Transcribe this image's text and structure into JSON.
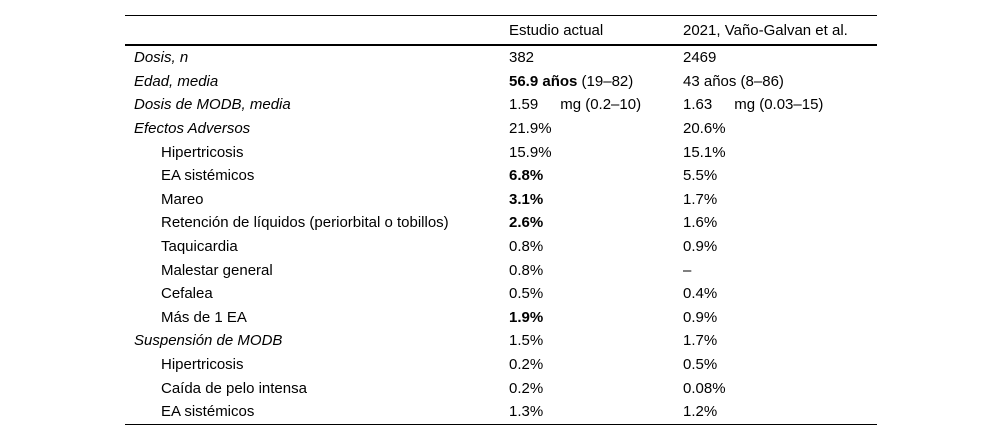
{
  "colors": {
    "text": "#000000",
    "background": "#ffffff",
    "rule": "#000000"
  },
  "table": {
    "columns": [
      "",
      "Estudio actual",
      "2021, Vaño-Galvan et al."
    ],
    "rows": [
      {
        "label": "Dosis, n",
        "level": "section",
        "cells": [
          [
            {
              "t": "382"
            }
          ],
          [
            {
              "t": "2469"
            }
          ]
        ]
      },
      {
        "label": "Edad, media",
        "level": "section",
        "cells": [
          [
            {
              "t": "56.9 años",
              "b": 1
            },
            {
              "t": " (19–82)"
            }
          ],
          [
            {
              "t": "43 años (8–86)"
            }
          ]
        ]
      },
      {
        "label": "Dosis de MODB, media",
        "level": "section",
        "cells": [
          [
            {
              "t": "1.59"
            },
            {
              "t": "mg (0.2–10)",
              "gap": 1
            }
          ],
          [
            {
              "t": "1.63"
            },
            {
              "t": "mg (0.03–15)",
              "gap": 1
            }
          ]
        ]
      },
      {
        "label": "Efectos Adversos",
        "level": "section",
        "cells": [
          [
            {
              "t": "21.9%"
            }
          ],
          [
            {
              "t": "20.6%"
            }
          ]
        ]
      },
      {
        "label": "Hipertricosis",
        "level": "sub",
        "cells": [
          [
            {
              "t": "15.9%"
            }
          ],
          [
            {
              "t": "15.1%"
            }
          ]
        ]
      },
      {
        "label": "EA sistémicos",
        "level": "sub",
        "cells": [
          [
            {
              "t": "6.8%",
              "b": 1
            }
          ],
          [
            {
              "t": "5.5%"
            }
          ]
        ]
      },
      {
        "label": "Mareo",
        "level": "sub",
        "cells": [
          [
            {
              "t": "3.1%",
              "b": 1
            }
          ],
          [
            {
              "t": "1.7%"
            }
          ]
        ]
      },
      {
        "label": "Retención de líquidos (periorbital o tobillos)",
        "level": "sub",
        "cells": [
          [
            {
              "t": "2.6%",
              "b": 1
            }
          ],
          [
            {
              "t": "1.6%"
            }
          ]
        ]
      },
      {
        "label": "Taquicardia",
        "level": "sub",
        "cells": [
          [
            {
              "t": "0.8%"
            }
          ],
          [
            {
              "t": "0.9%"
            }
          ]
        ]
      },
      {
        "label": "Malestar general",
        "level": "sub",
        "cells": [
          [
            {
              "t": "0.8%"
            }
          ],
          [
            {
              "t": "–"
            }
          ]
        ]
      },
      {
        "label": "Cefalea",
        "level": "sub",
        "cells": [
          [
            {
              "t": "0.5%"
            }
          ],
          [
            {
              "t": "0.4%"
            }
          ]
        ]
      },
      {
        "label": "Más de 1 EA",
        "level": "sub",
        "cells": [
          [
            {
              "t": "1.9%",
              "b": 1
            }
          ],
          [
            {
              "t": "0.9%"
            }
          ]
        ]
      },
      {
        "label": "Suspensión de MODB",
        "level": "section",
        "cells": [
          [
            {
              "t": "1.5%"
            }
          ],
          [
            {
              "t": "1.7%"
            }
          ]
        ]
      },
      {
        "label": "Hipertricosis",
        "level": "sub",
        "cells": [
          [
            {
              "t": "0.2%"
            }
          ],
          [
            {
              "t": "0.5%"
            }
          ]
        ]
      },
      {
        "label": "Caída de pelo intensa",
        "level": "sub",
        "cells": [
          [
            {
              "t": "0.2%"
            }
          ],
          [
            {
              "t": "0.08%"
            }
          ]
        ]
      },
      {
        "label": "EA sistémicos",
        "level": "sub",
        "cells": [
          [
            {
              "t": "1.3%"
            }
          ],
          [
            {
              "t": "1.2%"
            }
          ]
        ]
      }
    ]
  }
}
